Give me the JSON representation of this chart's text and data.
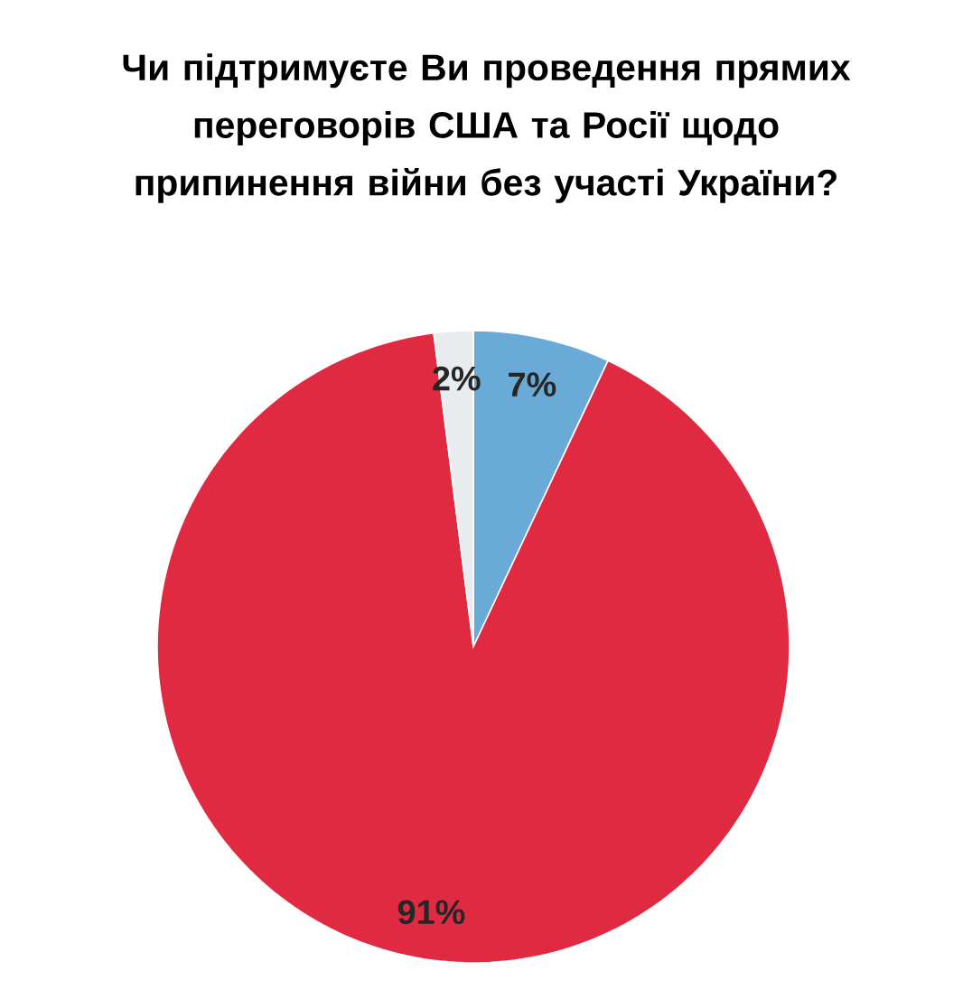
{
  "chart_data": {
    "type": "pie",
    "title": "Чи підтримуєте Ви проведення прямих переговорів США та Росії щодо припинення війни без участі України?",
    "categories": [
      null,
      null,
      null
    ],
    "values": [
      7,
      91,
      2
    ],
    "colors": [
      "#6aaad6",
      "#e02a41",
      "#e8ecef"
    ],
    "value_labels": [
      "7%",
      "91%",
      "2%"
    ]
  }
}
